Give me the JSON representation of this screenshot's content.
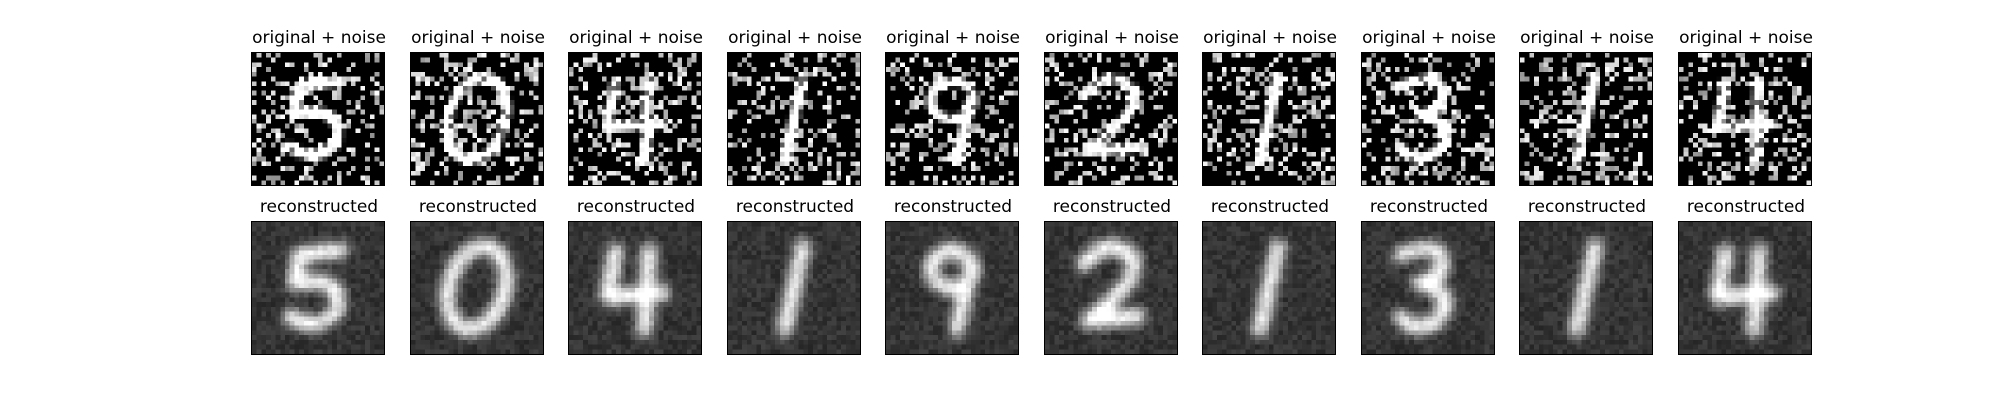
{
  "figure": {
    "row_titles": {
      "noisy": "original + noise",
      "reconstructed": "reconstructed"
    },
    "digits": [
      "5",
      "0",
      "4",
      "1",
      "9",
      "2",
      "1",
      "3",
      "1",
      "4"
    ],
    "image_style": "grayscale"
  }
}
